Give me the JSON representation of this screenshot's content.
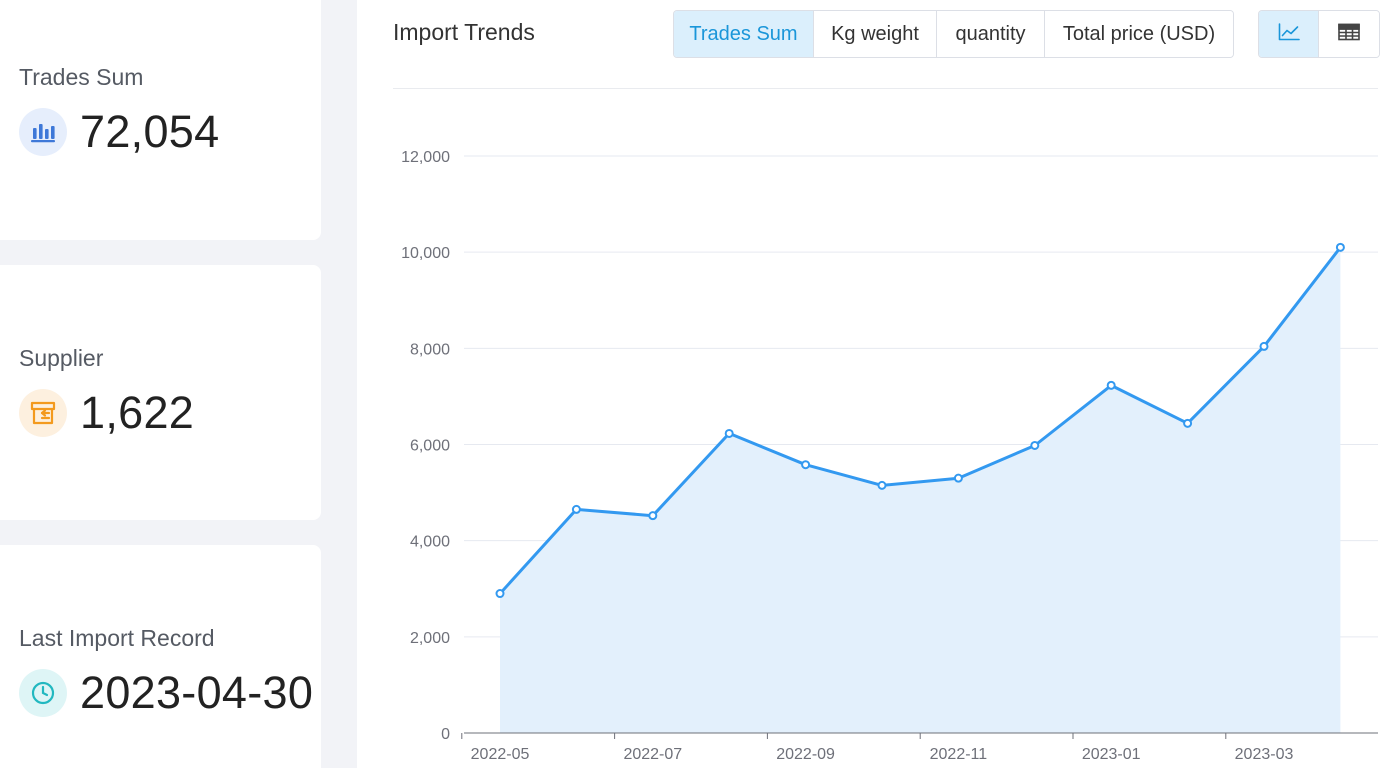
{
  "stats": [
    {
      "label": "Trades Sum",
      "value": "72,054",
      "icon": "bar-chart-icon",
      "icon_color": "#3e78d8",
      "icon_bg": "#e6eefc"
    },
    {
      "label": "Supplier",
      "value": "1,622",
      "icon": "storefront-icon",
      "icon_color": "#f39a1e",
      "icon_bg": "#fdf0df"
    },
    {
      "label": "Last Import Record",
      "value": "2023-04-30",
      "icon": "clock-icon",
      "icon_color": "#22b8c0",
      "icon_bg": "#def5f6"
    }
  ],
  "panel": {
    "title": "Import Trends",
    "metric_tabs": [
      "Trades Sum",
      "Kg weight",
      "quantity",
      "Total price (USD)"
    ],
    "active_metric": "Trades Sum",
    "view_tabs": [
      "line-chart-icon",
      "table-icon"
    ],
    "active_view": "line-chart-icon"
  },
  "colors": {
    "accent": "#1a96d9",
    "line": "#3399f0",
    "area": "#e3f0fc"
  },
  "chart_data": {
    "type": "area",
    "title": "",
    "xlabel": "",
    "ylabel": "",
    "x": [
      "2022-05",
      "2022-06",
      "2022-07",
      "2022-08",
      "2022-09",
      "2022-10",
      "2022-11",
      "2022-12",
      "2023-01",
      "2023-02",
      "2023-03",
      "2023-04"
    ],
    "x_tick_labels": [
      "2022-05",
      "2022-07",
      "2022-09",
      "2022-11",
      "2023-01",
      "2023-03"
    ],
    "series": [
      {
        "values": [
          2900,
          4650,
          4520,
          6230,
          5580,
          5150,
          5300,
          5980,
          7230,
          6440,
          8040,
          10100
        ]
      }
    ],
    "ylim": [
      0,
      12000
    ],
    "y_ticks": [
      0,
      2000,
      4000,
      6000,
      8000,
      10000,
      12000
    ],
    "grid": true,
    "legend": "none"
  }
}
